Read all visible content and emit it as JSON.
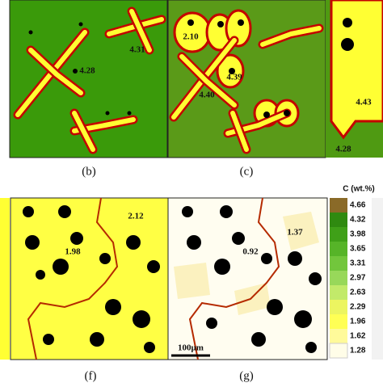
{
  "panels": [
    {
      "label": "(b)",
      "annotations": [
        "4.31",
        "4.28"
      ]
    },
    {
      "label": "(c)",
      "annotations": [
        "2.10",
        "4.39",
        "4.40",
        "4.43",
        "4.28"
      ]
    },
    {
      "label": "(f)",
      "annotations": [
        "2.12",
        "1.98"
      ]
    },
    {
      "label": "(g)",
      "annotations": [
        "1.37",
        "0.92"
      ],
      "scale_bar": "100μm"
    }
  ],
  "colorbar": {
    "title": "C (wt.%)",
    "ticks": [
      "4.66",
      "4.32",
      "3.98",
      "3.65",
      "3.31",
      "2.97",
      "2.63",
      "2.29",
      "1.96",
      "1.62",
      "1.28"
    ]
  }
}
